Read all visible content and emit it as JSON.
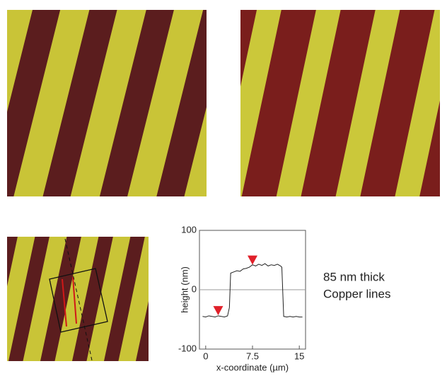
{
  "chart_data": {
    "type": "line",
    "xlabel": "x-coordinate (µm)",
    "ylabel": "height (nm)",
    "annotation": [
      "85 nm thick",
      "Copper lines"
    ],
    "x": [
      -0.5,
      0,
      0.5,
      1,
      1.5,
      2,
      2.5,
      3,
      3.5,
      3.8,
      4,
      4.5,
      5,
      5.5,
      6,
      6.5,
      7,
      7.5,
      8,
      8.5,
      9,
      9.5,
      10,
      10.5,
      11,
      11.5,
      12,
      12.2,
      12.5,
      13,
      13.5,
      14,
      14.5,
      15,
      15.5
    ],
    "series": [
      {
        "color": "#222222",
        "values": [
          -45,
          -46,
          -44,
          -45,
          -46,
          -44,
          -45,
          -46,
          -44,
          -30,
          28,
          30,
          32,
          31,
          35,
          36,
          38,
          42,
          40,
          43,
          41,
          44,
          40,
          42,
          41,
          43,
          40,
          38,
          -45,
          -46,
          -45,
          -46,
          -45,
          -46,
          -46
        ]
      }
    ],
    "markers": {
      "color": "#e0202a",
      "x": [
        2,
        7.5
      ],
      "y": [
        -37,
        48
      ]
    },
    "hlines": [
      0
    ],
    "xlim": [
      -1,
      16
    ],
    "xticks": [
      0,
      7.5,
      15
    ],
    "ylim": [
      -100,
      100
    ],
    "yticks": [
      -100,
      0,
      100
    ]
  }
}
